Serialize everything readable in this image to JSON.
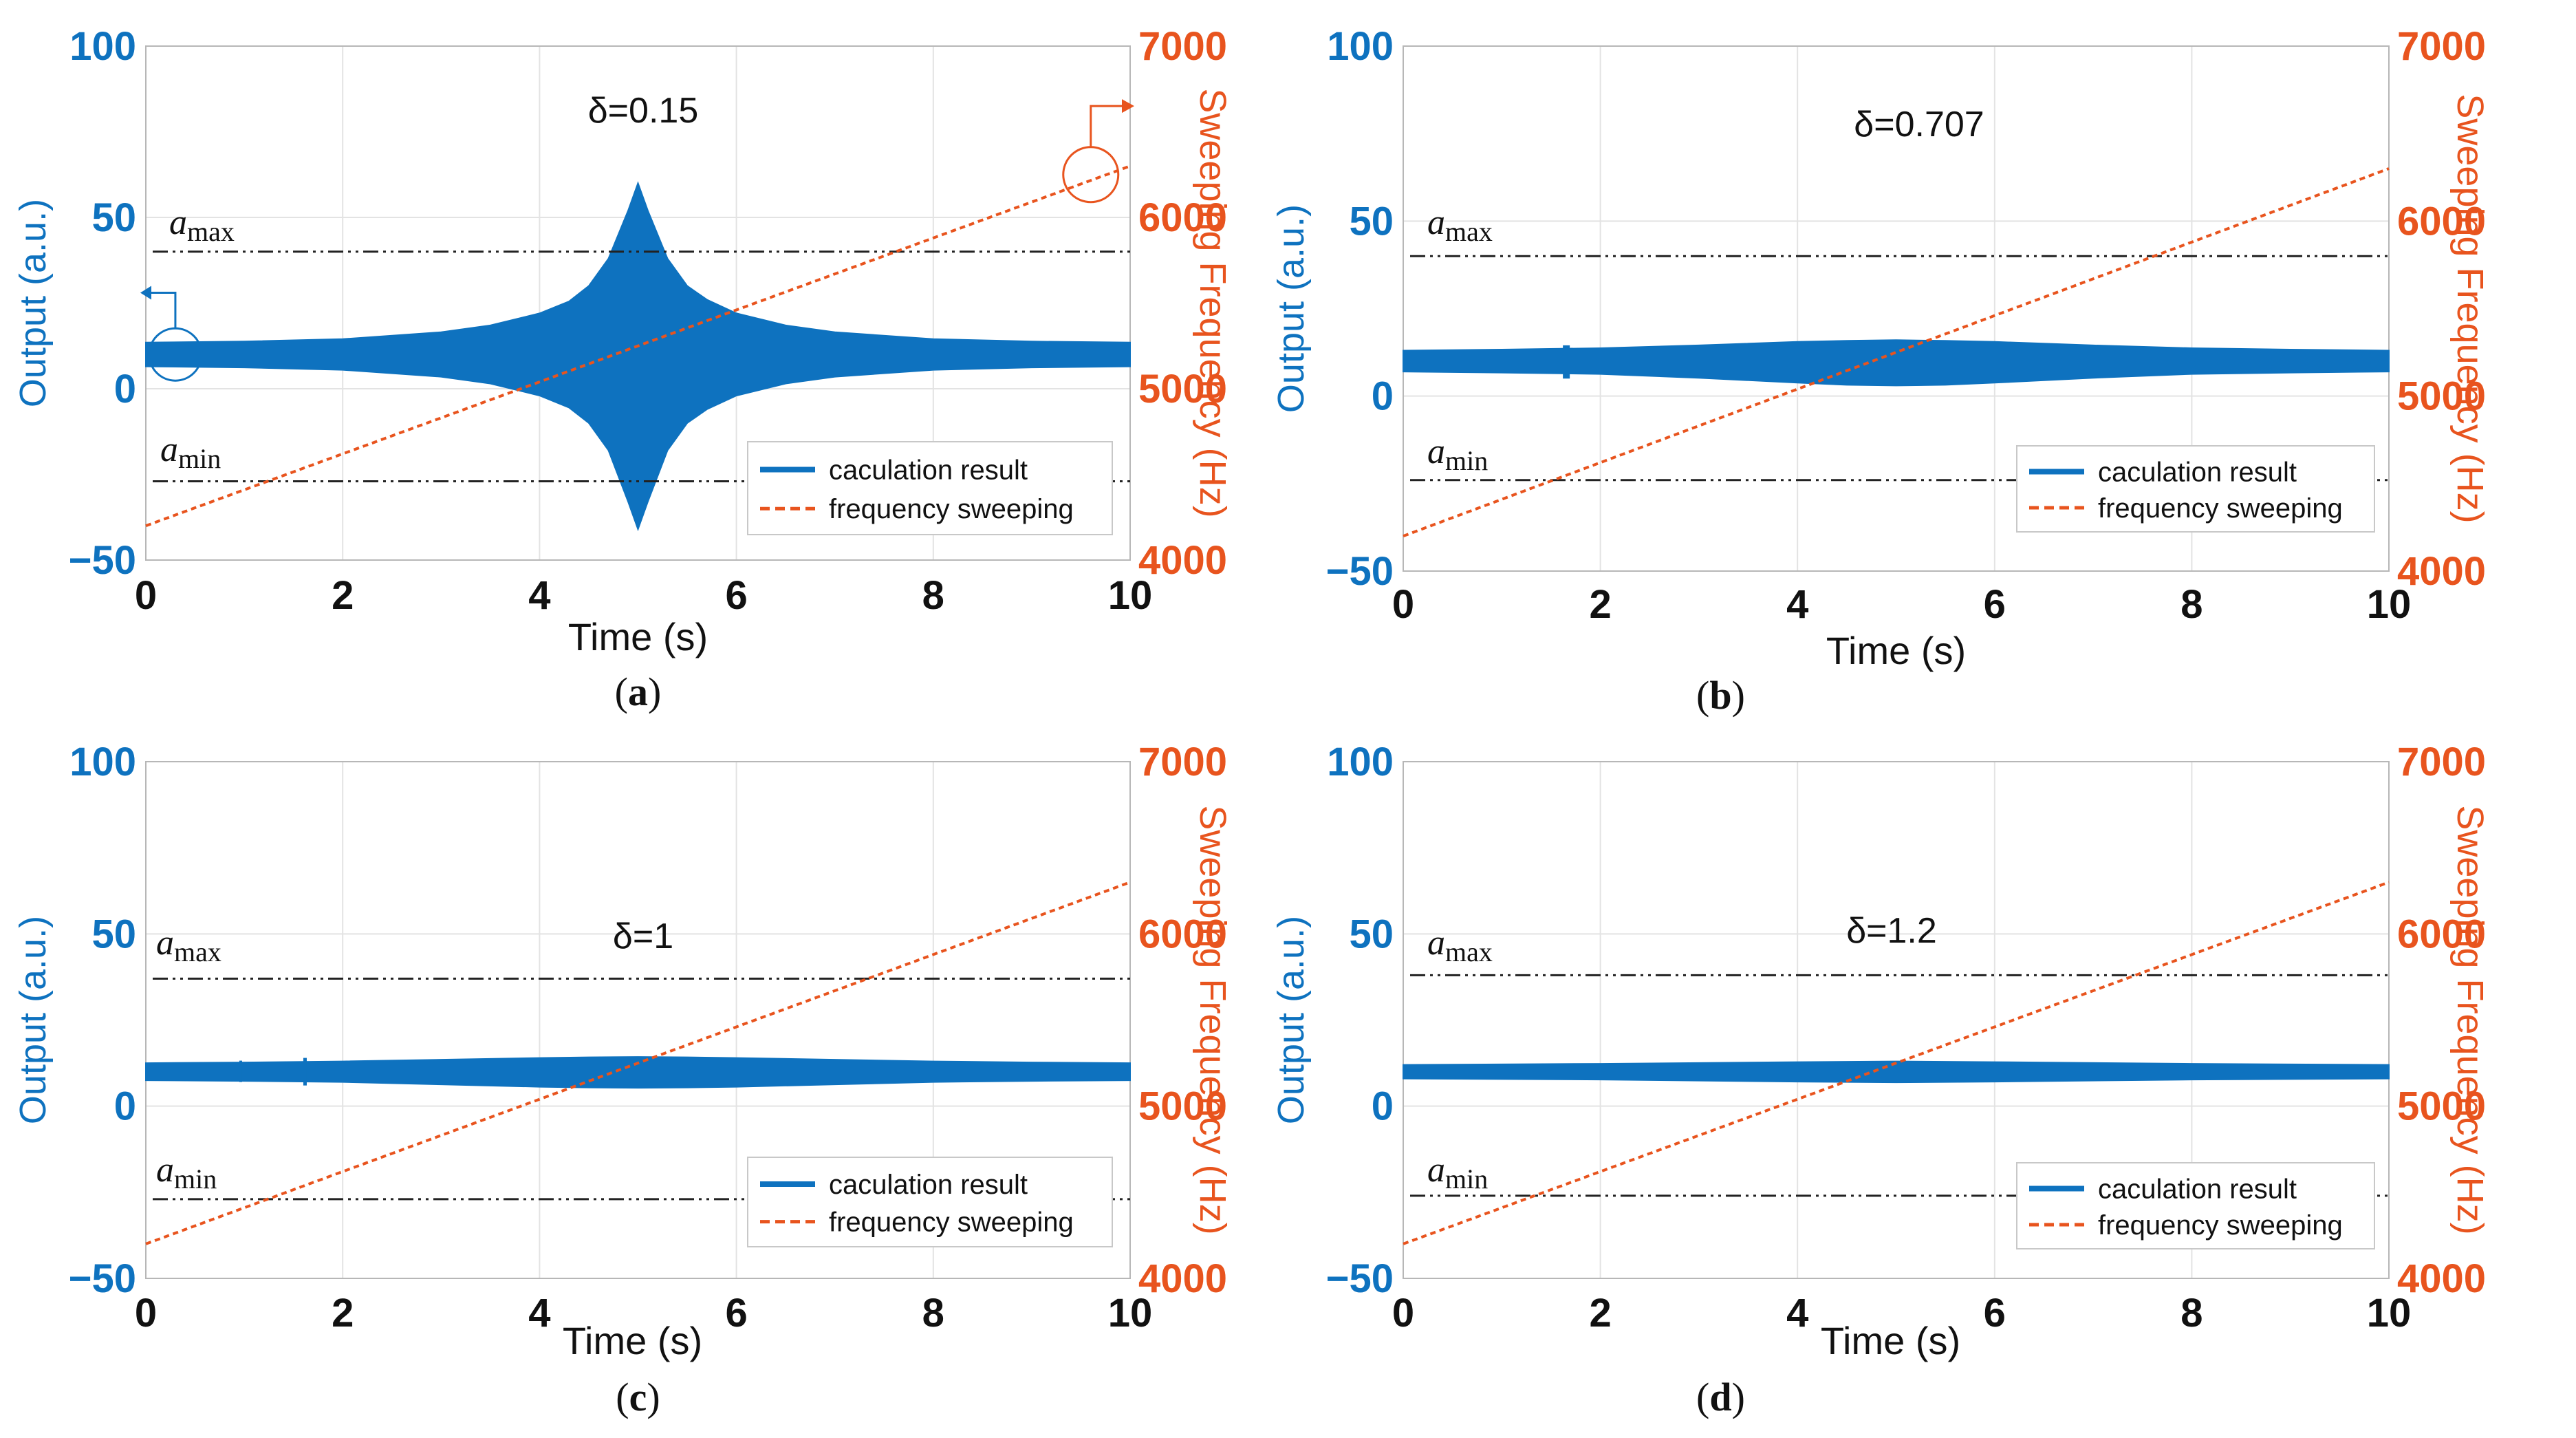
{
  "figure": {
    "colors": {
      "output": "#0e72bf",
      "sweep": "#e8541e",
      "threshold": "#222222",
      "grid": "#e3e3e3",
      "axis": "#b7b7b7"
    }
  },
  "chart_data": [
    {
      "panel": "a",
      "type": "line",
      "caption_letter": "a",
      "annotation": "δ=0.15",
      "xlabel": "Time (s)",
      "ylabel_left": "Output (a.u.)",
      "ylabel_right": "Sweeping Frequency (Hz)",
      "xlim": [
        0,
        10
      ],
      "ylim_left": [
        -50,
        100
      ],
      "ylim_right": [
        4000,
        7000
      ],
      "xticks": [
        "0",
        "2",
        "4",
        "6",
        "8",
        "10"
      ],
      "yticks_left": [
        "−50",
        "0",
        "50",
        "100"
      ],
      "yticks_right": [
        "4000",
        "5000",
        "6000",
        "7000"
      ],
      "grid": true,
      "legend_position": "bottom-right",
      "legend": [
        "caculation result",
        "frequency sweeping"
      ],
      "threshold_labels": {
        "max_base": "a",
        "max_sub": "max",
        "min_base": "a",
        "min_sub": "min"
      },
      "a_max": 40,
      "a_min": -27,
      "resonance": {
        "center": 10,
        "peak_time": 5,
        "peak_max": 60,
        "peak_min": -41,
        "base_half_width": 3.5
      },
      "series": [
        {
          "name": "caculation result",
          "axis": "left",
          "x": [
            0,
            1,
            2,
            3,
            3.5,
            4,
            4.3,
            4.5,
            4.7,
            4.9,
            5,
            5.1,
            5.3,
            5.5,
            5.7,
            6,
            6.5,
            7,
            8,
            9,
            10
          ],
          "upper": [
            13.5,
            13.8,
            14.5,
            16.5,
            18.5,
            22,
            25.5,
            30,
            38,
            52,
            60,
            52,
            38,
            30,
            26,
            22,
            18.5,
            16.5,
            14.5,
            13.8,
            13.5
          ],
          "lower": [
            6.5,
            6.2,
            5.5,
            3.5,
            1.5,
            -2,
            -5.5,
            -10,
            -18,
            -33,
            -41,
            -33,
            -18,
            -10,
            -6,
            -2,
            1.5,
            3.5,
            5.5,
            6.2,
            6.5
          ]
        },
        {
          "name": "frequency sweeping",
          "axis": "right",
          "x": [
            0,
            10
          ],
          "y": [
            4200,
            6300
          ]
        }
      ]
    },
    {
      "panel": "b",
      "type": "line",
      "caption_letter": "b",
      "annotation": "δ=0.707",
      "xlabel": "Time (s)",
      "ylabel_left": "Output (a.u.)",
      "ylabel_right": "Sweeping Frequency (Hz)",
      "xlim": [
        0,
        10
      ],
      "ylim_left": [
        -50,
        100
      ],
      "ylim_right": [
        4000,
        7000
      ],
      "xticks": [
        "0",
        "2",
        "4",
        "6",
        "8",
        "10"
      ],
      "yticks_left": [
        "−50",
        "0",
        "50",
        "100"
      ],
      "yticks_right": [
        "4000",
        "5000",
        "6000",
        "7000"
      ],
      "grid": true,
      "legend_position": "bottom-right",
      "legend": [
        "caculation result",
        "frequency sweeping"
      ],
      "threshold_labels": {
        "max_base": "a",
        "max_sub": "max",
        "min_base": "a",
        "min_sub": "min"
      },
      "a_max": 40,
      "a_min": -24,
      "series": [
        {
          "name": "caculation result",
          "axis": "left",
          "x": [
            0,
            1,
            2,
            3,
            4,
            4.5,
            5,
            5.5,
            6,
            7,
            8,
            9,
            10
          ],
          "upper": [
            13,
            13.3,
            13.7,
            14.5,
            15.5,
            15.8,
            16,
            15.8,
            15.5,
            14.5,
            13.7,
            13.3,
            13
          ],
          "lower": [
            7,
            6.7,
            6.3,
            5.2,
            3.8,
            3.2,
            3,
            3.2,
            3.8,
            5.2,
            6.3,
            6.7,
            7
          ]
        },
        {
          "name": "frequency sweeping",
          "axis": "right",
          "x": [
            0,
            10
          ],
          "y": [
            4200,
            6300
          ]
        }
      ]
    },
    {
      "panel": "c",
      "type": "line",
      "caption_letter": "c",
      "annotation": "δ=1",
      "xlabel": "Time (s)",
      "ylabel_left": "Output (a.u.)",
      "ylabel_right": "Sweeping Frequency (Hz)",
      "xlim": [
        0,
        10
      ],
      "ylim_left": [
        -50,
        100
      ],
      "ylim_right": [
        4000,
        7000
      ],
      "xticks": [
        "0",
        "2",
        "4",
        "6",
        "8",
        "10"
      ],
      "yticks_left": [
        "−50",
        "0",
        "50",
        "100"
      ],
      "yticks_right": [
        "4000",
        "5000",
        "6000",
        "7000"
      ],
      "grid": true,
      "legend_position": "bottom-right",
      "legend": [
        "caculation result",
        "frequency sweeping"
      ],
      "threshold_labels": {
        "max_base": "a",
        "max_sub": "max",
        "min_base": "a",
        "min_sub": "min"
      },
      "a_max": 37,
      "a_min": -27,
      "series": [
        {
          "name": "caculation result",
          "axis": "left",
          "x": [
            0,
            1,
            2,
            3,
            4,
            4.5,
            5,
            5.5,
            6,
            7,
            8,
            9,
            10
          ],
          "upper": [
            12.5,
            12.7,
            13,
            13.5,
            14,
            14.2,
            14.3,
            14.2,
            14,
            13.5,
            13,
            12.7,
            12.5
          ],
          "lower": [
            7.5,
            7.3,
            7,
            6.3,
            5.6,
            5.4,
            5.3,
            5.4,
            5.6,
            6.3,
            7,
            7.3,
            7.5
          ]
        },
        {
          "name": "frequency sweeping",
          "axis": "right",
          "x": [
            0,
            10
          ],
          "y": [
            4200,
            6300
          ]
        }
      ]
    },
    {
      "panel": "d",
      "type": "line",
      "caption_letter": "d",
      "annotation": "δ=1.2",
      "xlabel": "Time (s)",
      "ylabel_left": "Output (a.u.)",
      "ylabel_right": "Sweeping Frequency (Hz)",
      "xlim": [
        0,
        10
      ],
      "ylim_left": [
        -50,
        100
      ],
      "ylim_right": [
        4000,
        7000
      ],
      "xticks": [
        "0",
        "2",
        "4",
        "6",
        "8",
        "10"
      ],
      "yticks_left": [
        "−50",
        "0",
        "50",
        "100"
      ],
      "yticks_right": [
        "4000",
        "5000",
        "6000",
        "7000"
      ],
      "grid": true,
      "legend_position": "bottom-right",
      "legend": [
        "caculation result",
        "frequency sweeping"
      ],
      "threshold_labels": {
        "max_base": "a",
        "max_sub": "max",
        "min_base": "a",
        "min_sub": "min"
      },
      "a_max": 38,
      "a_min": -26,
      "series": [
        {
          "name": "caculation result",
          "axis": "left",
          "x": [
            0,
            2,
            4,
            5,
            6,
            8,
            10
          ],
          "upper": [
            12,
            12.3,
            12.8,
            13,
            12.8,
            12.3,
            12
          ],
          "lower": [
            8,
            7.7,
            7.1,
            6.9,
            7.1,
            7.7,
            8
          ]
        },
        {
          "name": "frequency sweeping",
          "axis": "right",
          "x": [
            0,
            10
          ],
          "y": [
            4200,
            6300
          ]
        }
      ]
    }
  ]
}
